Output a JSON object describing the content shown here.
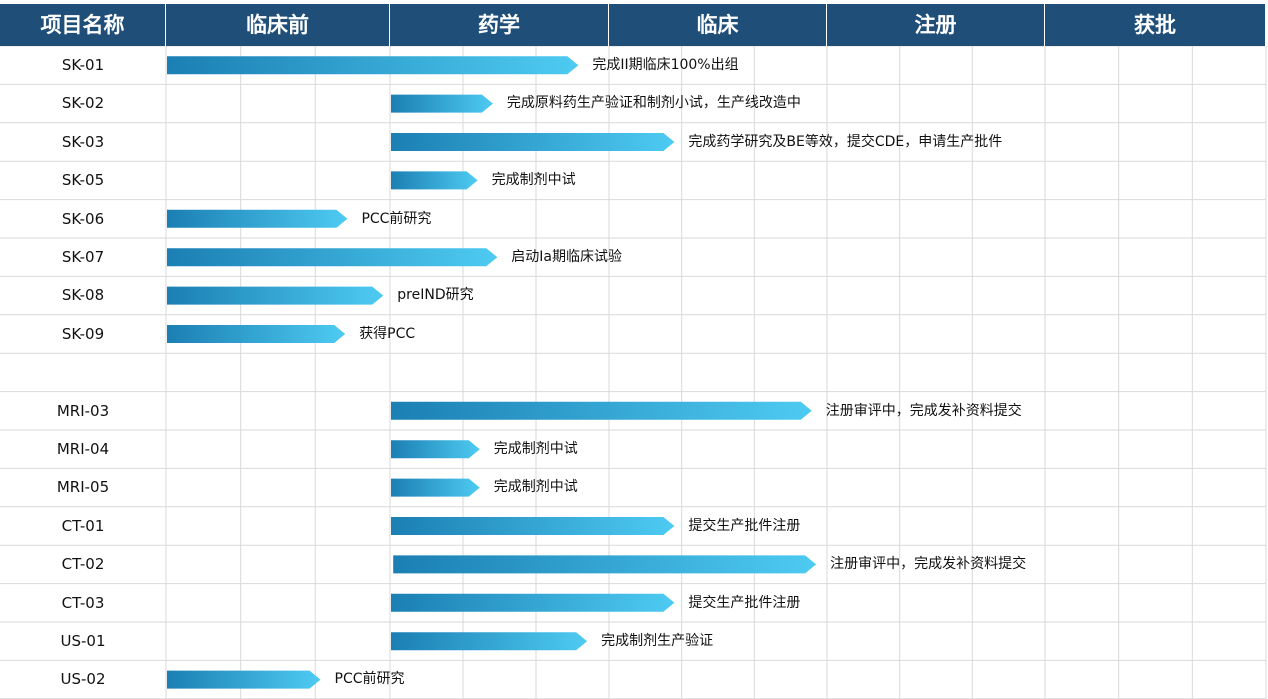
{
  "chart_data": {
    "type": "gantt",
    "columns": [
      "项目名称",
      "临床前",
      "药学",
      "临床",
      "注册",
      "获批"
    ],
    "stages": [
      "临床前",
      "药学",
      "临床",
      "注册",
      "获批"
    ],
    "rows": [
      {
        "project": "SK-01",
        "start": 0.0,
        "end": 1.86,
        "label": "完成II期临床100%出组"
      },
      {
        "project": "SK-02",
        "start": 1.0,
        "end": 1.47,
        "label": "完成原料药生产验证和制剂小试，生产线改造中"
      },
      {
        "project": "SK-03",
        "start": 1.0,
        "end": 2.3,
        "label": "完成药学研究及BE等效，提交CDE，申请生产批件"
      },
      {
        "project": "SK-05",
        "start": 1.0,
        "end": 1.4,
        "label": "完成制剂中试"
      },
      {
        "project": "SK-06",
        "start": 0.0,
        "end": 0.81,
        "label": "PCC前研究"
      },
      {
        "project": "SK-07",
        "start": 0.0,
        "end": 1.49,
        "label": "启动Ia期临床试验"
      },
      {
        "project": "SK-08",
        "start": 0.0,
        "end": 0.97,
        "label": "preIND研究"
      },
      {
        "project": "SK-09",
        "start": 0.0,
        "end": 0.8,
        "label": "获得PCC"
      },
      {
        "project": "",
        "start": null,
        "end": null,
        "label": ""
      },
      {
        "project": "MRI-03",
        "start": 1.0,
        "end": 2.93,
        "label": "注册审评中，完成发补资料提交"
      },
      {
        "project": "MRI-04",
        "start": 1.0,
        "end": 1.41,
        "label": "完成制剂中试"
      },
      {
        "project": "MRI-05",
        "start": 1.0,
        "end": 1.41,
        "label": "完成制剂中试"
      },
      {
        "project": "CT-01",
        "start": 1.0,
        "end": 2.3,
        "label": "提交生产批件注册"
      },
      {
        "project": "CT-02",
        "start": 1.01,
        "end": 2.95,
        "label": "注册审评中，完成发补资料提交"
      },
      {
        "project": "CT-03",
        "start": 1.0,
        "end": 2.3,
        "label": "提交生产批件注册"
      },
      {
        "project": "US-01",
        "start": 1.0,
        "end": 1.9,
        "label": "完成制剂生产验证"
      },
      {
        "project": "US-02",
        "start": 0.0,
        "end": 0.69,
        "label": "PCC前研究"
      }
    ],
    "colors": {
      "header_bg": "#1f4e79",
      "bar_start": "#1b7fb3",
      "bar_end": "#4ecbf2",
      "grid": "#d9d9d9"
    }
  }
}
